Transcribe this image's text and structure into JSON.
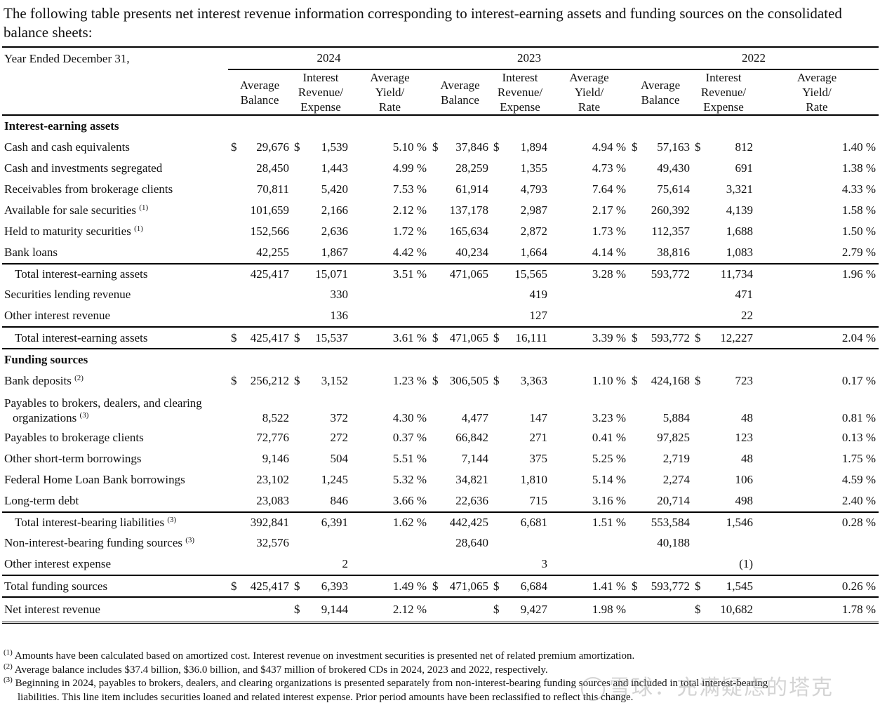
{
  "intro": "The following table presents net interest revenue information corresponding to interest-earning assets and funding sources on the consolidated balance sheets:",
  "header": {
    "year_label": "Year Ended December 31,",
    "years": [
      "2024",
      "2023",
      "2022"
    ],
    "col_avg_balance": [
      "Average",
      "Balance"
    ],
    "col_interest": [
      "Interest",
      "Revenue/",
      "Expense"
    ],
    "col_yield": [
      "Average",
      "Yield/",
      "Rate"
    ]
  },
  "sections": {
    "assets": "Interest-earning assets",
    "funding": "Funding sources"
  },
  "rows": [
    {
      "label": "Cash and cash equivalents",
      "dollar": true,
      "v": [
        "29,676",
        "1,539",
        "5.10 %",
        "37,846",
        "1,894",
        "4.94 %",
        "57,163",
        "812",
        "1.40 %"
      ]
    },
    {
      "label": "Cash and investments segregated",
      "v": [
        "28,450",
        "1,443",
        "4.99 %",
        "28,259",
        "1,355",
        "4.73 %",
        "49,430",
        "691",
        "1.38 %"
      ]
    },
    {
      "label": "Receivables from brokerage clients",
      "v": [
        "70,811",
        "5,420",
        "7.53 %",
        "61,914",
        "4,793",
        "7.64 %",
        "75,614",
        "3,321",
        "4.33 %"
      ]
    },
    {
      "label": "Available for sale securities",
      "sup": "(1)",
      "v": [
        "101,659",
        "2,166",
        "2.12 %",
        "137,178",
        "2,987",
        "2.17 %",
        "260,392",
        "4,139",
        "1.58 %"
      ]
    },
    {
      "label": "Held to maturity securities",
      "sup": "(1)",
      "v": [
        "152,566",
        "2,636",
        "1.72 %",
        "165,634",
        "2,872",
        "1.73 %",
        "112,357",
        "1,688",
        "1.50 %"
      ]
    },
    {
      "label": "Bank loans",
      "v": [
        "42,255",
        "1,867",
        "4.42 %",
        "40,234",
        "1,664",
        "4.14 %",
        "38,816",
        "1,083",
        "2.79 %"
      ]
    },
    {
      "label": "Total interest-earning assets",
      "v": [
        "425,417",
        "15,071",
        "3.51 %",
        "471,065",
        "15,565",
        "3.28 %",
        "593,772",
        "11,734",
        "1.96 %"
      ]
    },
    {
      "label": "Securities lending revenue",
      "v": [
        "",
        "330",
        "",
        "",
        "419",
        "",
        "",
        "471",
        ""
      ]
    },
    {
      "label": "Other interest revenue",
      "v": [
        "",
        "136",
        "",
        "",
        "127",
        "",
        "",
        "22",
        ""
      ]
    },
    {
      "label": "Total interest-earning assets",
      "dollar": true,
      "v": [
        "425,417",
        "15,537",
        "3.61 %",
        "471,065",
        "16,111",
        "3.39 %",
        "593,772",
        "12,227",
        "2.04 %"
      ]
    },
    {
      "label": "Bank deposits",
      "sup": "(2)",
      "dollar": true,
      "v": [
        "256,212",
        "3,152",
        "1.23 %",
        "306,505",
        "3,363",
        "1.10 %",
        "424,168",
        "723",
        "0.17 %"
      ]
    },
    {
      "label": "Payables to brokers, dealers, and clearing",
      "label2": "organizations",
      "sup": "(3)",
      "v": [
        "8,522",
        "372",
        "4.30 %",
        "4,477",
        "147",
        "3.23 %",
        "5,884",
        "48",
        "0.81 %"
      ]
    },
    {
      "label": "Payables to brokerage clients",
      "v": [
        "72,776",
        "272",
        "0.37 %",
        "66,842",
        "271",
        "0.41 %",
        "97,825",
        "123",
        "0.13 %"
      ]
    },
    {
      "label": "Other short-term borrowings",
      "v": [
        "9,146",
        "504",
        "5.51 %",
        "7,144",
        "375",
        "5.25 %",
        "2,719",
        "48",
        "1.75 %"
      ]
    },
    {
      "label": "Federal Home Loan Bank borrowings",
      "v": [
        "23,102",
        "1,245",
        "5.32 %",
        "34,821",
        "1,810",
        "5.14 %",
        "2,274",
        "106",
        "4.59 %"
      ]
    },
    {
      "label": "Long-term debt",
      "v": [
        "23,083",
        "846",
        "3.66 %",
        "22,636",
        "715",
        "3.16 %",
        "20,714",
        "498",
        "2.40 %"
      ]
    },
    {
      "label": "Total interest-bearing liabilities",
      "sup": "(3)",
      "v": [
        "392,841",
        "6,391",
        "1.62 %",
        "442,425",
        "6,681",
        "1.51 %",
        "553,584",
        "1,546",
        "0.28 %"
      ]
    },
    {
      "label": "Non-interest-bearing funding sources",
      "sup": "(3)",
      "v": [
        "32,576",
        "",
        "",
        "28,640",
        "",
        "",
        "40,188",
        "",
        ""
      ]
    },
    {
      "label": "Other interest expense",
      "v": [
        "",
        "2",
        "",
        "",
        "3",
        "",
        "",
        "(1)",
        ""
      ]
    },
    {
      "label": "Total funding sources",
      "dollar": true,
      "v": [
        "425,417",
        "6,393",
        "1.49 %",
        "471,065",
        "6,684",
        "1.41 %",
        "593,772",
        "1,545",
        "0.26 %"
      ]
    },
    {
      "label": "Net interest revenue",
      "dollar_interest_only": true,
      "v": [
        "",
        "9,144",
        "2.12 %",
        "",
        "9,427",
        "1.98 %",
        "",
        "10,682",
        "1.78 %"
      ]
    }
  ],
  "currency_symbol": "$",
  "footnotes": [
    {
      "mark": "(1)",
      "text": "Amounts have been calculated based on amortized cost. Interest revenue on investment securities is presented net of related premium amortization."
    },
    {
      "mark": "(2)",
      "text": "Average balance includes $37.4 billion, $36.0 billion, and $437 million of brokered CDs in 2024, 2023 and 2022, respectively."
    },
    {
      "mark": "(3)",
      "text": "Beginning in 2024, payables to brokers, dealers, and clearing organizations is presented separately from non-interest-bearing funding sources and included in total interest-bearing",
      "text2": "liabilities. This line item includes securities loaned and related interest expense. Prior period amounts have been reclassified to reflect this change."
    }
  ],
  "watermark": "雪球：充满疑虑的塔克"
}
